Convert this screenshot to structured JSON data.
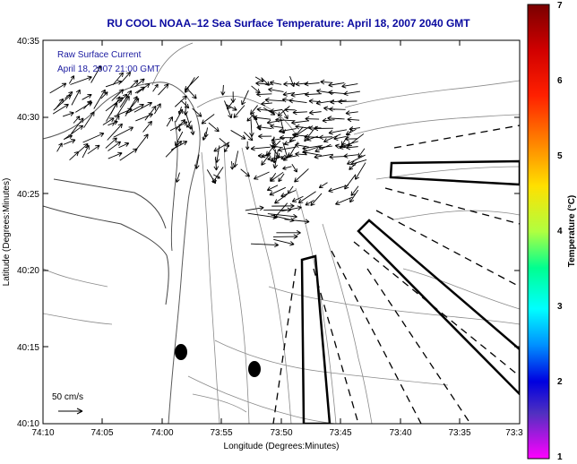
{
  "title": "RU COOL  NOAA–12  Sea Surface Temperature:  April 18, 2007 2040 GMT",
  "notes": {
    "line1": "Raw Surface Current",
    "line2": "April 18, 2007 21:00 GMT"
  },
  "scale_label": "50 cm/s",
  "axes": {
    "xlabel": "Longitude (Degrees:Minutes)",
    "ylabel": "Latitude (Degrees:Minutes)",
    "x_ticks": [
      "74:10",
      "74:05",
      "74:00",
      "73:55",
      "73:50",
      "73:45",
      "73:40",
      "73:35",
      "73:3"
    ],
    "y_ticks": [
      "40:35",
      "40:30",
      "40:25",
      "40:20",
      "40:15",
      "40:10"
    ]
  },
  "colorbar": {
    "label": "Temperature (°C)",
    "ticks": [
      "7",
      "6",
      "5",
      "4",
      "3",
      "2",
      "1"
    ],
    "colors": [
      "#7a0000",
      "#ff0000",
      "#ff8000",
      "#ffff00",
      "#00ff80",
      "#00ffff",
      "#0050ff",
      "#0000c0",
      "#ff00ff"
    ]
  },
  "colors": {
    "title": "#0a0aa0",
    "frame": "#000000",
    "contour": "#888888",
    "vector": "#000000"
  }
}
